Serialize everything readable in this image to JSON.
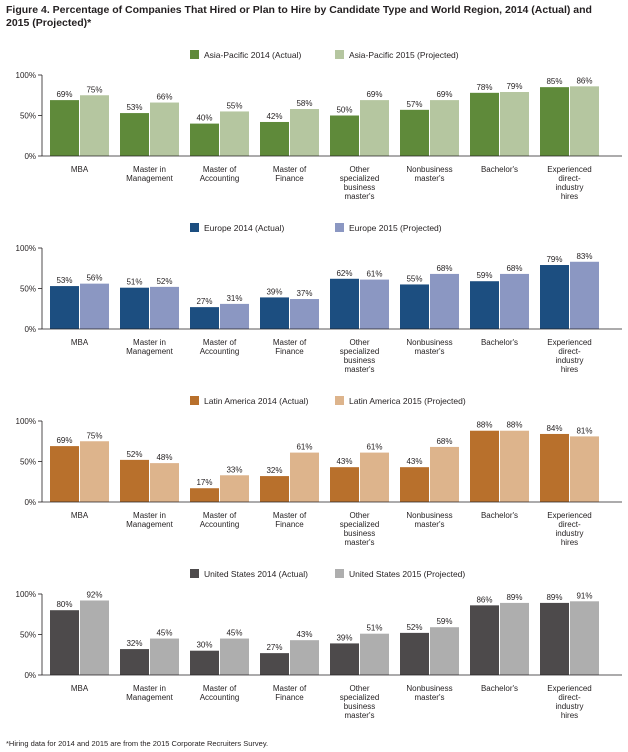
{
  "title": "Figure 4. Percentage of Companies That Hired or Plan to Hire by Candidate Type and World Region, 2014 (Actual) and 2015 (Projected)*",
  "footnote": "*Hiring data for 2014 and 2015 are from the 2015 Corporate Recruiters Survey.",
  "chart_data": [
    {
      "type": "bar",
      "title": "",
      "categories": [
        "MBA",
        "Master in Management",
        "Master of Accounting",
        "Master of Finance",
        "Other specialized business master's",
        "Nonbusiness master's",
        "Bachelor's",
        "Experienced direct-industry hires"
      ],
      "category_lines": [
        [
          "MBA"
        ],
        [
          "Master in",
          "Management"
        ],
        [
          "Master of",
          "Accounting"
        ],
        [
          "Master of",
          "Finance"
        ],
        [
          "Other",
          "specialized",
          "business",
          "master's"
        ],
        [
          "Nonbusiness",
          "master's"
        ],
        [
          "Bachelor's"
        ],
        [
          "Experienced",
          "direct-",
          "industry",
          "hires"
        ]
      ],
      "series": [
        {
          "name": "Asia-Pacific 2014 (Actual)",
          "color": "#5f8a3a",
          "values": [
            69,
            53,
            40,
            42,
            50,
            57,
            78,
            85
          ]
        },
        {
          "name": "Asia-Pacific 2015 (Projected)",
          "color": "#b5c6a0",
          "values": [
            75,
            66,
            55,
            58,
            69,
            69,
            79,
            86
          ]
        }
      ],
      "yticks": [
        "0%",
        "50%",
        "100%"
      ],
      "ylim": [
        0,
        100
      ],
      "legend": "top-center",
      "grid": false
    },
    {
      "type": "bar",
      "title": "",
      "categories": [
        "MBA",
        "Master in Management",
        "Master of Accounting",
        "Master of Finance",
        "Other specialized business master's",
        "Nonbusiness master's",
        "Bachelor's",
        "Experienced direct-industry hires"
      ],
      "category_lines": [
        [
          "MBA"
        ],
        [
          "Master in",
          "Management"
        ],
        [
          "Master of",
          "Accounting"
        ],
        [
          "Master of",
          "Finance"
        ],
        [
          "Other",
          "specialized",
          "business",
          "master's"
        ],
        [
          "Nonbusiness",
          "master's"
        ],
        [
          "Bachelor's"
        ],
        [
          "Experienced",
          "direct-",
          "industry",
          "hires"
        ]
      ],
      "series": [
        {
          "name": "Europe 2014 (Actual)",
          "color": "#1c4e80",
          "values": [
            53,
            51,
            27,
            39,
            62,
            55,
            59,
            79
          ]
        },
        {
          "name": "Europe 2015 (Projected)",
          "color": "#8b97c2",
          "values": [
            56,
            52,
            31,
            37,
            61,
            68,
            68,
            83
          ]
        }
      ],
      "yticks": [
        "0%",
        "50%",
        "100%"
      ],
      "ylim": [
        0,
        100
      ],
      "legend": "top-center",
      "grid": false
    },
    {
      "type": "bar",
      "title": "",
      "categories": [
        "MBA",
        "Master in Management",
        "Master of Accounting",
        "Master of Finance",
        "Other specialized business master's",
        "Nonbusiness master's",
        "Bachelor's",
        "Experienced direct-industry hires"
      ],
      "category_lines": [
        [
          "MBA"
        ],
        [
          "Master in",
          "Management"
        ],
        [
          "Master of",
          "Accounting"
        ],
        [
          "Master of",
          "Finance"
        ],
        [
          "Other",
          "specialized",
          "business",
          "master's"
        ],
        [
          "Nonbusiness",
          "master's"
        ],
        [
          "Bachelor's"
        ],
        [
          "Experienced",
          "direct-",
          "industry",
          "hires"
        ]
      ],
      "series": [
        {
          "name": "Latin America 2014 (Actual)",
          "color": "#b8702c",
          "values": [
            69,
            52,
            17,
            32,
            43,
            43,
            88,
            84
          ]
        },
        {
          "name": "Latin America 2015 (Projected)",
          "color": "#ddb48c",
          "values": [
            75,
            48,
            33,
            61,
            61,
            68,
            88,
            81
          ]
        }
      ],
      "yticks": [
        "0%",
        "50%",
        "100%"
      ],
      "ylim": [
        0,
        100
      ],
      "legend": "top-center",
      "grid": false
    },
    {
      "type": "bar",
      "title": "",
      "categories": [
        "MBA",
        "Master in Management",
        "Master of Accounting",
        "Master of Finance",
        "Other specialized business master's",
        "Nonbusiness master's",
        "Bachelor's",
        "Experienced direct-industry hires"
      ],
      "category_lines": [
        [
          "MBA"
        ],
        [
          "Master in",
          "Management"
        ],
        [
          "Master of",
          "Accounting"
        ],
        [
          "Master of",
          "Finance"
        ],
        [
          "Other",
          "specialized",
          "business",
          "master's"
        ],
        [
          "Nonbusiness",
          "master's"
        ],
        [
          "Bachelor's"
        ],
        [
          "Experienced",
          "direct-",
          "industry",
          "hires"
        ]
      ],
      "series": [
        {
          "name": "United States 2014 (Actual)",
          "color": "#4d4a4b",
          "values": [
            80,
            32,
            30,
            27,
            39,
            52,
            86,
            89
          ]
        },
        {
          "name": "United States 2015 (Projected)",
          "color": "#aeaeae",
          "values": [
            92,
            45,
            45,
            43,
            51,
            59,
            89,
            91
          ]
        }
      ],
      "yticks": [
        "0%",
        "50%",
        "100%"
      ],
      "ylim": [
        0,
        100
      ],
      "legend": "top-center",
      "grid": false
    }
  ]
}
